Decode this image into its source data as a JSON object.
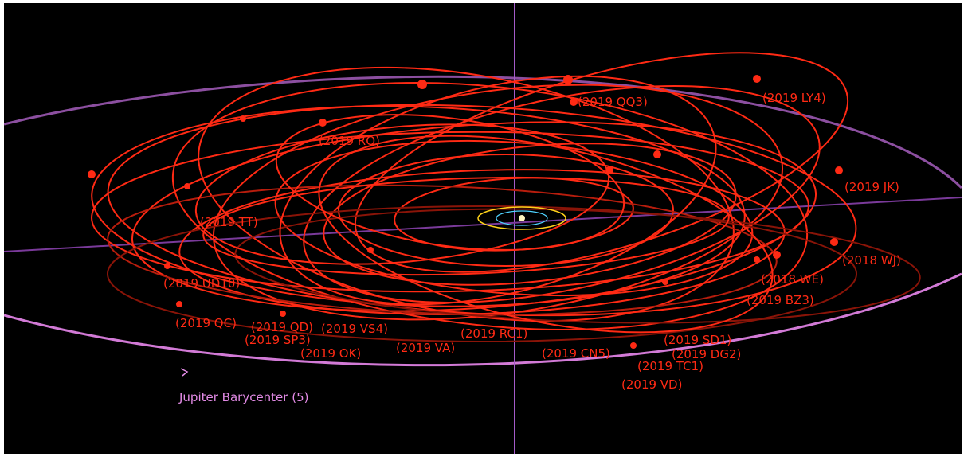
{
  "scene": {
    "title": "",
    "colors": {
      "background": "#000000",
      "orbit": "#ff2a14",
      "orbit_dim": "#8a1408",
      "jupiter_orbit": "#d27ad6",
      "axis": "#a35ac8",
      "label_red": "#ff2a14",
      "label_jupiter": "#e38be6"
    },
    "jupiter_label": "Jupiter Barycenter (5)",
    "asteroid_labels": [
      "(2019 LY4)",
      "(2019 JK)",
      "(2018 WJ)",
      "(2018 WE)",
      "(2019 BZ3)",
      "(2019 UD10)",
      "(2019 QC)",
      "(2019 QD)",
      "(2019 VS4)",
      "(2019 SP3)",
      "(2019 OK)",
      "(2019 VA)",
      "(2019 RC1)",
      "(2019 CN5)",
      "(2019 SD1)",
      "(2019 DG2)",
      "(2019 TC1)",
      "(2019 VD)",
      "(2019 RQ)",
      "(2019 QQ3)",
      "(2019 TT)"
    ]
  }
}
